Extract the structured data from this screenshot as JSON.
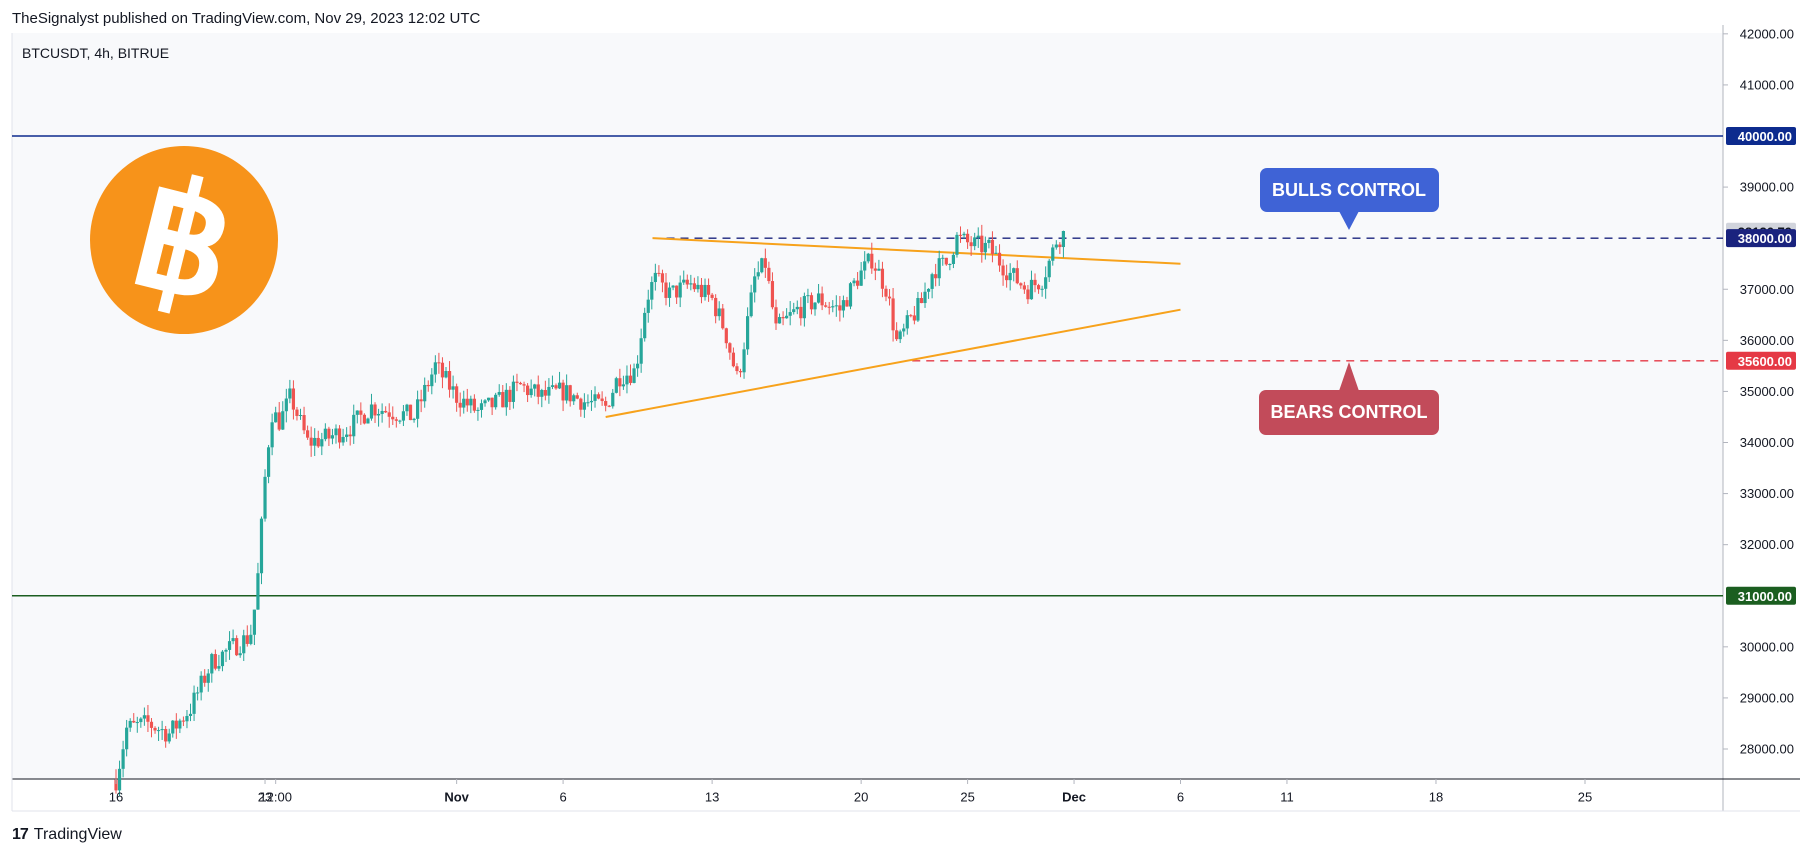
{
  "header": {
    "published": "TheSignalyst published on TradingView.com, Nov 29, 2023 12:02 UTC"
  },
  "chart": {
    "symbol_line": "BTCUSDT, 4h, BITRUE"
  },
  "footer": {
    "logo_mark": "17",
    "brand": "TradingView"
  },
  "colors": {
    "background": "#f8f9fb",
    "up": "#26a69a",
    "down": "#ef5350",
    "resistance_line": "#0d2b8e",
    "support_line": "#1b5e20",
    "triangle": "#f7a21b",
    "bulls_line": "#1a237e",
    "bears_line": "#e53945",
    "bulls_box": "#3f63d6",
    "bears_box": "#c24b5a",
    "bitcoin_orange": "#f7931a"
  },
  "annotations": {
    "bulls": {
      "label": "BULLS CONTROL",
      "level": 38000
    },
    "bears": {
      "label": "BEARS CONTROL",
      "level": 35600
    }
  },
  "logo": {
    "icon": "bitcoin-icon",
    "glyph": "฿"
  },
  "chart_data": {
    "type": "candlestick",
    "title": "BTCUSDT, 4h, BITRUE",
    "ylim": [
      27400,
      42100
    ],
    "yticks": [
      {
        "value": 28000,
        "label": "28000.00"
      },
      {
        "value": 29000,
        "label": "29000.00"
      },
      {
        "value": 30000,
        "label": "30000.00"
      },
      {
        "value": 32000,
        "label": "32000.00"
      },
      {
        "value": 33000,
        "label": "33000.00"
      },
      {
        "value": 34000,
        "label": "34000.00"
      },
      {
        "value": 35000,
        "label": "35000.00"
      },
      {
        "value": 36000,
        "label": "36000.00"
      },
      {
        "value": 37000,
        "label": "37000.00"
      },
      {
        "value": 39000,
        "label": "39000.00"
      },
      {
        "value": 41000,
        "label": "41000.00"
      },
      {
        "value": 42000,
        "label": "42000.00"
      }
    ],
    "xticks": [
      {
        "day": 16,
        "label": "16",
        "bold": false
      },
      {
        "day": 23,
        "label": "23",
        "bold": false
      },
      {
        "day": 23.5,
        "label": "12:00",
        "bold": false
      },
      {
        "day": 32,
        "label": "Nov",
        "bold": true
      },
      {
        "day": 37,
        "label": "6",
        "bold": false
      },
      {
        "day": 44,
        "label": "13",
        "bold": false
      },
      {
        "day": 51,
        "label": "20",
        "bold": false
      },
      {
        "day": 56,
        "label": "25",
        "bold": false
      },
      {
        "day": 61,
        "label": "Dec",
        "bold": true
      },
      {
        "day": 66,
        "label": "6",
        "bold": false
      },
      {
        "day": 71,
        "label": "11",
        "bold": false
      },
      {
        "day": 78,
        "label": "18",
        "bold": false
      },
      {
        "day": 85,
        "label": "25",
        "bold": false
      }
    ],
    "price_labels": [
      {
        "value": 40000,
        "label": "40000.00",
        "color": "#0d2b8e",
        "text_color": "#ffffff"
      },
      {
        "value": 38126.79,
        "label": "38126.79",
        "color": "#d1d4dc",
        "text_color": "#131722"
      },
      {
        "value": 38000,
        "label": "38000.00",
        "color": "#1a237e",
        "text_color": "#ffffff"
      },
      {
        "value": 35600,
        "label": "35600.00",
        "color": "#e53945",
        "text_color": "#ffffff"
      },
      {
        "value": 31000,
        "label": "31000.00",
        "color": "#1b5e20",
        "text_color": "#ffffff"
      }
    ],
    "horizontal_levels": [
      {
        "value": 40000,
        "style": "solid",
        "color": "#0d2b8e",
        "name": "resistance-40000"
      },
      {
        "value": 31000,
        "style": "solid",
        "color": "#1b5e20",
        "name": "support-31000"
      }
    ],
    "dashed_levels": [
      {
        "value": 38000,
        "from_day": 41.2,
        "color": "#1a237e",
        "name": "bulls-level"
      },
      {
        "value": 35600,
        "from_day": 53.4,
        "color": "#e53945",
        "name": "bears-level"
      }
    ],
    "triangle": {
      "upper": [
        {
          "day": 41.2,
          "price": 38000
        },
        {
          "day": 66,
          "price": 37500
        }
      ],
      "lower": [
        {
          "day": 39,
          "price": 34500
        },
        {
          "day": 66,
          "price": 36600
        }
      ]
    },
    "anchors": [
      {
        "day": 16.0,
        "price": 27400
      },
      {
        "day": 16.5,
        "price": 28400
      },
      {
        "day": 17.5,
        "price": 28500
      },
      {
        "day": 18.5,
        "price": 28300
      },
      {
        "day": 19.5,
        "price": 28800
      },
      {
        "day": 20.5,
        "price": 29700
      },
      {
        "day": 21.5,
        "price": 30000
      },
      {
        "day": 22.3,
        "price": 30200
      },
      {
        "day": 22.6,
        "price": 31000
      },
      {
        "day": 23.0,
        "price": 33300
      },
      {
        "day": 23.3,
        "price": 34600
      },
      {
        "day": 23.7,
        "price": 34400
      },
      {
        "day": 24.2,
        "price": 34900
      },
      {
        "day": 25.0,
        "price": 34000
      },
      {
        "day": 26.0,
        "price": 34100
      },
      {
        "day": 27.0,
        "price": 34300
      },
      {
        "day": 28.0,
        "price": 34700
      },
      {
        "day": 29.0,
        "price": 34600
      },
      {
        "day": 30.0,
        "price": 34500
      },
      {
        "day": 31.0,
        "price": 35500
      },
      {
        "day": 32.0,
        "price": 34900
      },
      {
        "day": 33.0,
        "price": 34600
      },
      {
        "day": 34.0,
        "price": 34800
      },
      {
        "day": 35.0,
        "price": 35100
      },
      {
        "day": 36.0,
        "price": 34900
      },
      {
        "day": 37.0,
        "price": 35000
      },
      {
        "day": 38.0,
        "price": 34800
      },
      {
        "day": 39.0,
        "price": 34700
      },
      {
        "day": 39.6,
        "price": 35300
      },
      {
        "day": 40.4,
        "price": 35400
      },
      {
        "day": 40.9,
        "price": 36800
      },
      {
        "day": 41.3,
        "price": 37200
      },
      {
        "day": 42.0,
        "price": 36900
      },
      {
        "day": 43.0,
        "price": 37100
      },
      {
        "day": 44.0,
        "price": 36800
      },
      {
        "day": 44.6,
        "price": 36200
      },
      {
        "day": 45.2,
        "price": 35200
      },
      {
        "day": 46.0,
        "price": 37200
      },
      {
        "day": 46.5,
        "price": 37500
      },
      {
        "day": 47.0,
        "price": 36200
      },
      {
        "day": 48.0,
        "price": 36600
      },
      {
        "day": 49.0,
        "price": 36800
      },
      {
        "day": 50.0,
        "price": 36600
      },
      {
        "day": 50.8,
        "price": 37200
      },
      {
        "day": 51.5,
        "price": 37600
      },
      {
        "day": 52.2,
        "price": 37000
      },
      {
        "day": 52.7,
        "price": 35900
      },
      {
        "day": 53.3,
        "price": 36400
      },
      {
        "day": 53.8,
        "price": 36700
      },
      {
        "day": 54.4,
        "price": 37400
      },
      {
        "day": 55.0,
        "price": 37500
      },
      {
        "day": 55.5,
        "price": 38000
      },
      {
        "day": 56.0,
        "price": 37900
      },
      {
        "day": 57.0,
        "price": 37800
      },
      {
        "day": 58.0,
        "price": 37300
      },
      {
        "day": 58.8,
        "price": 37000
      },
      {
        "day": 59.5,
        "price": 37200
      },
      {
        "day": 59.9,
        "price": 37600
      },
      {
        "day": 60.2,
        "price": 38000
      },
      {
        "day": 60.6,
        "price": 38100
      }
    ]
  }
}
